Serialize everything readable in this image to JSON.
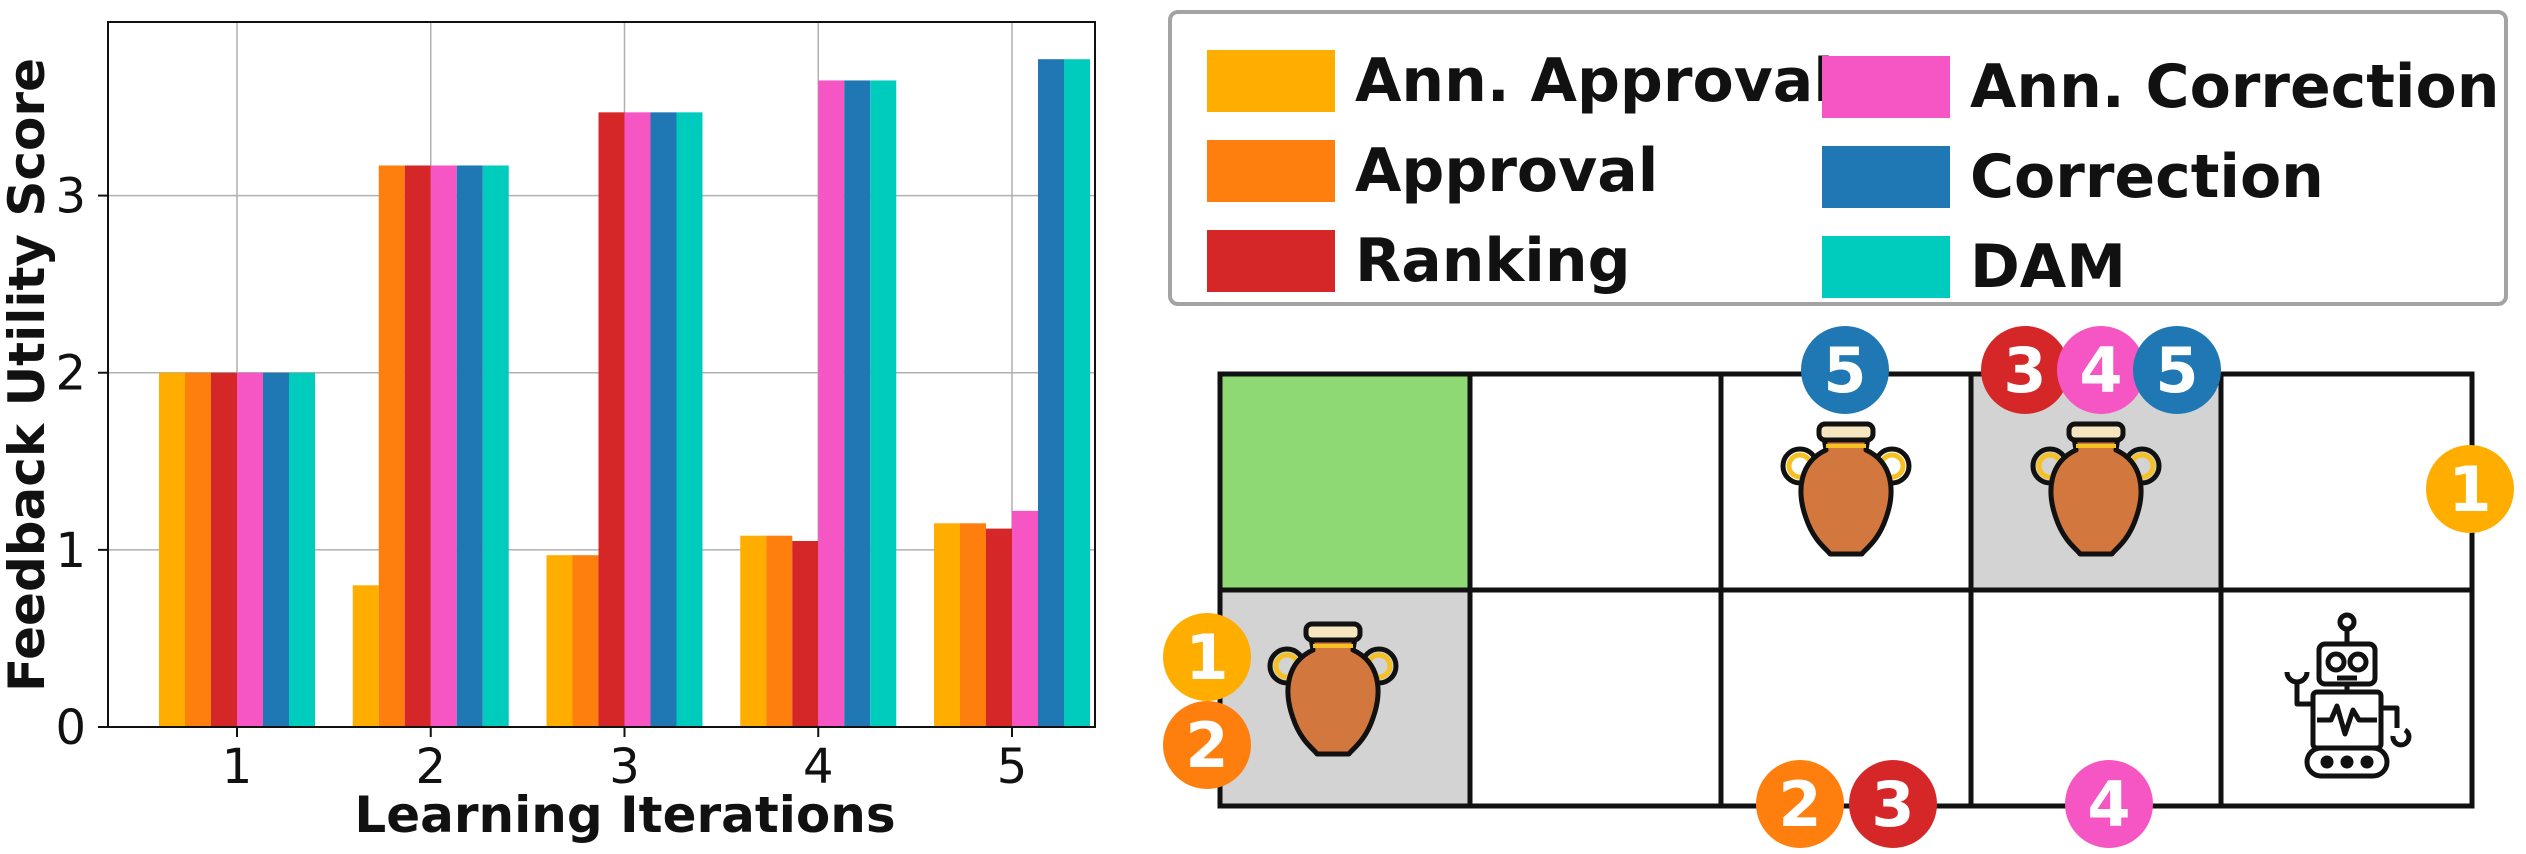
{
  "chart_data": {
    "type": "bar",
    "categories": [
      "1",
      "2",
      "3",
      "4",
      "5"
    ],
    "xlabel": "Learning Iterations",
    "ylabel": "Feedback Utility Score",
    "ylim": [
      0,
      3.98
    ],
    "yticks": [
      "0",
      "1",
      "2",
      "3"
    ],
    "grid": true,
    "series": [
      {
        "name": "Ann. Approval",
        "color": "#ffae00",
        "values": [
          2.0,
          0.8,
          0.97,
          1.08,
          1.15
        ]
      },
      {
        "name": "Approval",
        "color": "#ff7f0e",
        "values": [
          2.0,
          3.17,
          0.97,
          1.08,
          1.15
        ]
      },
      {
        "name": "Ranking",
        "color": "#d62728",
        "values": [
          2.0,
          3.17,
          3.47,
          1.05,
          1.12
        ]
      },
      {
        "name": "Ann. Correction",
        "color": "#f556c3",
        "values": [
          2.0,
          3.17,
          3.47,
          3.65,
          1.22
        ]
      },
      {
        "name": "Correction",
        "color": "#1f77b4",
        "values": [
          2.0,
          3.17,
          3.47,
          3.65,
          3.77
        ]
      },
      {
        "name": "DAM",
        "color": "#00ccbe",
        "values": [
          2.0,
          3.17,
          3.47,
          3.65,
          3.77
        ]
      }
    ]
  },
  "legend": {
    "items": [
      {
        "label": "Ann. Approval",
        "color": "#ffae00"
      },
      {
        "label": "Approval",
        "color": "#ff7f0e"
      },
      {
        "label": "Ranking",
        "color": "#d62728"
      },
      {
        "label": "Ann. Correction",
        "color": "#f556c3"
      },
      {
        "label": "Correction",
        "color": "#1f77b4"
      },
      {
        "label": "DAM",
        "color": "#00ccbe"
      }
    ]
  },
  "gridworld": {
    "goal_color": "#8ed974",
    "shaded_color": "#d3d3d3",
    "icons": [
      "vase-icon",
      "vase-icon",
      "vase-icon",
      "robot-icon"
    ],
    "badges": [
      {
        "text": "5",
        "color": "#1f77b4"
      },
      {
        "text": "3",
        "color": "#d62728"
      },
      {
        "text": "4",
        "color": "#f556c3"
      },
      {
        "text": "5",
        "color": "#1f77b4"
      },
      {
        "text": "1",
        "color": "#ffae00"
      },
      {
        "text": "1",
        "color": "#ffae00"
      },
      {
        "text": "2",
        "color": "#ff7f0e"
      },
      {
        "text": "2",
        "color": "#ff7f0e"
      },
      {
        "text": "3",
        "color": "#d62728"
      },
      {
        "text": "4",
        "color": "#f556c3"
      }
    ]
  }
}
